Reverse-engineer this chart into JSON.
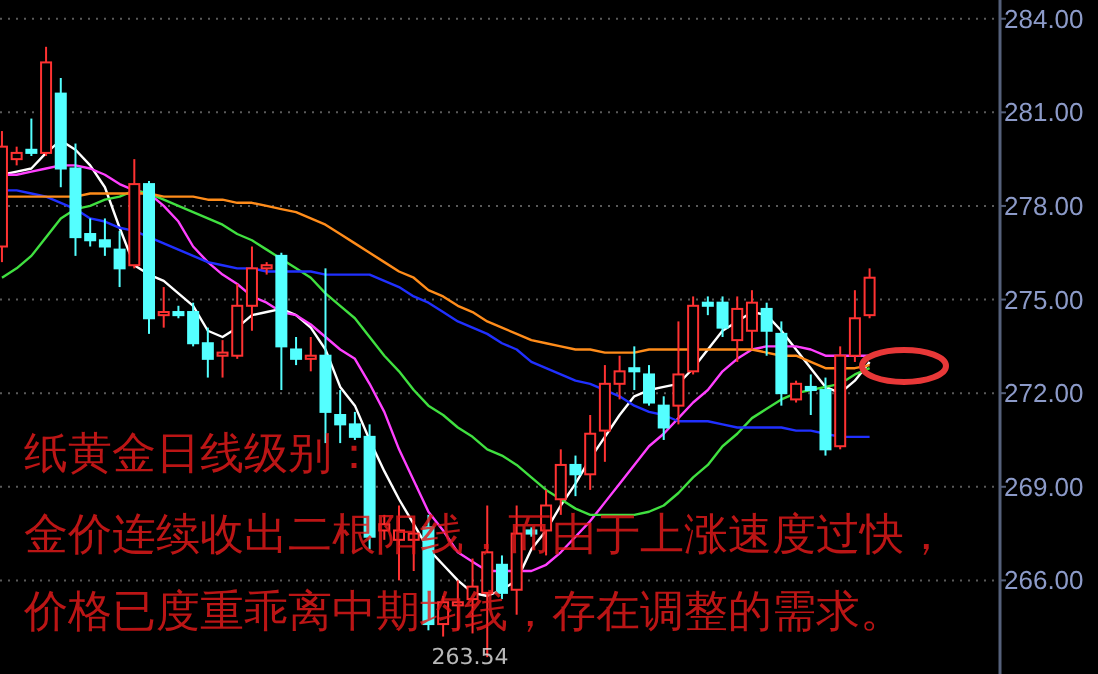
{
  "chart_data": {
    "type": "candlestick",
    "categories": [
      null,
      null,
      null,
      null,
      null,
      null,
      null,
      null,
      null,
      null,
      null,
      null,
      null,
      null,
      null,
      null,
      null,
      null,
      null,
      null,
      null,
      null,
      null,
      null,
      null,
      null,
      null,
      null,
      null,
      null,
      null,
      null,
      null,
      null,
      null,
      null,
      null,
      null,
      null,
      null,
      null,
      null,
      null,
      null,
      null,
      null,
      null,
      null,
      null,
      null,
      null,
      null,
      null,
      null,
      null,
      null,
      null,
      null,
      null,
      null
    ],
    "ohlc": [
      [
        276.7,
        280.4,
        276.2,
        279.9
      ],
      [
        279.5,
        279.9,
        279.3,
        279.7
      ],
      [
        279.8,
        280.8,
        279.6,
        279.7
      ],
      [
        279.7,
        283.1,
        279.6,
        282.6
      ],
      [
        281.6,
        282.1,
        278.6,
        279.2
      ],
      [
        279.2,
        280.0,
        276.4,
        277.0
      ],
      [
        277.1,
        277.6,
        276.7,
        276.9
      ],
      [
        276.9,
        277.6,
        276.4,
        276.7
      ],
      [
        276.6,
        277.2,
        275.4,
        276.0
      ],
      [
        276.1,
        279.5,
        276.0,
        278.7
      ],
      [
        278.7,
        278.8,
        273.9,
        274.4
      ],
      [
        274.5,
        275.4,
        274.1,
        274.6
      ],
      [
        274.6,
        274.8,
        274.4,
        274.5
      ],
      [
        274.6,
        274.9,
        273.5,
        273.6
      ],
      [
        273.6,
        274.1,
        272.5,
        273.1
      ],
      [
        273.2,
        273.7,
        272.5,
        273.3
      ],
      [
        273.2,
        275.5,
        273.1,
        274.8
      ],
      [
        274.8,
        276.7,
        274.0,
        276.0
      ],
      [
        276.0,
        276.2,
        275.8,
        276.1
      ],
      [
        276.4,
        276.5,
        272.1,
        273.5
      ],
      [
        273.4,
        273.8,
        272.9,
        273.1
      ],
      [
        273.1,
        273.8,
        272.7,
        273.2
      ],
      [
        273.2,
        276.0,
        270.4,
        271.4
      ],
      [
        271.3,
        272.1,
        270.4,
        271.0
      ],
      [
        271.0,
        271.4,
        270.5,
        270.6
      ],
      [
        270.6,
        271.0,
        267.0,
        267.4
      ],
      [
        267.6,
        268.1,
        267.3,
        267.8
      ],
      [
        267.3,
        268.4,
        266.0,
        267.6
      ],
      [
        267.3,
        267.9,
        266.3,
        267.5
      ],
      [
        267.7,
        268.1,
        264.4,
        264.6
      ],
      [
        264.6,
        265.5,
        264.2,
        265.3
      ],
      [
        265.2,
        266.0,
        264.4,
        265.3
      ],
      [
        265.4,
        266.7,
        264.3,
        265.8
      ],
      [
        265.6,
        268.4,
        263.54,
        266.9
      ],
      [
        266.5,
        266.8,
        265.4,
        265.6
      ],
      [
        265.7,
        268.4,
        264.9,
        267.5
      ],
      [
        267.6,
        267.7,
        267.4,
        267.5
      ],
      [
        267.6,
        268.9,
        266.8,
        268.4
      ],
      [
        268.6,
        270.2,
        268.1,
        269.7
      ],
      [
        269.7,
        270.0,
        268.7,
        269.4
      ],
      [
        269.4,
        271.3,
        268.9,
        270.7
      ],
      [
        270.8,
        272.9,
        269.8,
        272.3
      ],
      [
        272.3,
        273.2,
        271.8,
        272.7
      ],
      [
        272.8,
        273.5,
        272.1,
        272.7
      ],
      [
        272.6,
        272.9,
        271.6,
        271.7
      ],
      [
        271.6,
        271.9,
        270.5,
        270.9
      ],
      [
        271.6,
        274.3,
        271.0,
        272.6
      ],
      [
        272.7,
        275.1,
        272.6,
        274.8
      ],
      [
        274.9,
        275.1,
        274.5,
        274.8
      ],
      [
        274.9,
        275.1,
        273.8,
        274.1
      ],
      [
        273.7,
        275.1,
        273.0,
        274.7
      ],
      [
        274.0,
        275.3,
        273.4,
        274.9
      ],
      [
        274.7,
        274.9,
        273.2,
        274.0
      ],
      [
        273.9,
        274.3,
        271.6,
        272.0
      ],
      [
        271.8,
        272.4,
        271.7,
        272.3
      ],
      [
        272.2,
        272.6,
        271.3,
        272.1
      ],
      [
        272.1,
        272.5,
        270.0,
        270.2
      ],
      [
        270.3,
        273.5,
        270.2,
        273.2
      ],
      [
        273.2,
        275.3,
        273.0,
        274.4
      ],
      [
        274.5,
        276.0,
        274.4,
        275.7
      ]
    ],
    "colors": [
      "#ff3232",
      "#ff3232",
      "#54ffff",
      "#ff3232",
      "#54ffff",
      "#54ffff",
      "#54ffff",
      "#54ffff",
      "#54ffff",
      "#ff3232",
      "#54ffff",
      "#ff3232",
      "#54ffff",
      "#54ffff",
      "#54ffff",
      "#ff3232",
      "#ff3232",
      "#ff3232",
      "#ff3232",
      "#54ffff",
      "#54ffff",
      "#ff3232",
      "#54ffff",
      "#54ffff",
      "#54ffff",
      "#54ffff",
      "#ff3232",
      "#ff3232",
      "#ff3232",
      "#54ffff",
      "#ff3232",
      "#ff3232",
      "#ff3232",
      "#ff3232",
      "#54ffff",
      "#ff3232",
      "#54ffff",
      "#ff3232",
      "#ff3232",
      "#54ffff",
      "#ff3232",
      "#ff3232",
      "#ff3232",
      "#54ffff",
      "#54ffff",
      "#54ffff",
      "#ff3232",
      "#ff3232",
      "#54ffff",
      "#54ffff",
      "#ff3232",
      "#ff3232",
      "#54ffff",
      "#54ffff",
      "#ff3232",
      "#54ffff",
      "#54ffff",
      "#ff3232",
      "#ff3232",
      "#ff3232"
    ],
    "series": [
      {
        "type": "line",
        "color": "#ffffff",
        "values": [
          279.0,
          279.1,
          279.2,
          279.7,
          280.1,
          279.8,
          279.3,
          278.6,
          277.3,
          276.1,
          275.8,
          275.6,
          275.2,
          274.8,
          274.0,
          273.8,
          274.1,
          274.5,
          274.6,
          274.7,
          274.5,
          274.1,
          273.4,
          272.2,
          271.6,
          270.5,
          269.5,
          268.6,
          267.8,
          267.0,
          266.5,
          266.0,
          265.6,
          265.5,
          265.7,
          266.0,
          267.0,
          267.6,
          268.4,
          269.1,
          269.9,
          270.6,
          271.3,
          271.9,
          272.1,
          272.2,
          272.3,
          272.8,
          273.4,
          274.0,
          274.3,
          274.6,
          274.5,
          274.0,
          273.4,
          272.8,
          272.2,
          272.0,
          272.4,
          273.0
        ]
      },
      {
        "type": "line",
        "color": "#ff40ff",
        "values": [
          279.0,
          279.0,
          279.1,
          279.2,
          279.3,
          279.3,
          279.2,
          279.0,
          278.7,
          278.5,
          278.4,
          278.0,
          277.5,
          276.7,
          276.2,
          275.8,
          275.5,
          275.1,
          274.9,
          274.6,
          274.5,
          274.2,
          273.8,
          273.4,
          273.1,
          272.3,
          271.4,
          270.2,
          269.2,
          268.2,
          267.6,
          266.9,
          266.6,
          266.3,
          266.3,
          266.3,
          266.3,
          266.5,
          266.9,
          267.4,
          267.9,
          268.5,
          269.1,
          269.7,
          270.3,
          270.7,
          271.2,
          271.7,
          272.1,
          272.7,
          273.1,
          273.4,
          273.5,
          273.5,
          273.5,
          273.4,
          273.2,
          273.2,
          273.2,
          273.2
        ]
      },
      {
        "type": "line",
        "color": "#40e040",
        "values": [
          275.7,
          276.0,
          276.4,
          277.0,
          277.6,
          277.9,
          278.0,
          278.2,
          278.3,
          278.5,
          278.4,
          278.2,
          278.0,
          277.8,
          277.6,
          277.4,
          277.1,
          276.9,
          276.6,
          276.3,
          276.0,
          275.7,
          275.2,
          274.8,
          274.4,
          273.8,
          273.2,
          272.7,
          272.1,
          271.6,
          271.3,
          270.9,
          270.6,
          270.2,
          270.0,
          269.7,
          269.3,
          268.9,
          268.6,
          268.3,
          268.1,
          268.1,
          268.1,
          268.1,
          268.2,
          268.4,
          268.8,
          269.3,
          269.7,
          270.3,
          270.7,
          271.2,
          271.5,
          271.8,
          272.0,
          272.1,
          272.2,
          272.3,
          272.6,
          272.8
        ]
      },
      {
        "type": "line",
        "color": "#2030ff",
        "values": [
          278.5,
          278.5,
          278.4,
          278.3,
          278.1,
          277.9,
          277.6,
          277.5,
          277.3,
          277.2,
          277.0,
          276.8,
          276.6,
          276.4,
          276.2,
          276.1,
          276.0,
          276.0,
          275.9,
          275.9,
          275.9,
          275.9,
          275.8,
          275.8,
          275.8,
          275.8,
          275.6,
          275.4,
          275.1,
          274.9,
          274.6,
          274.3,
          274.1,
          273.9,
          273.6,
          273.4,
          273.0,
          272.8,
          272.6,
          272.4,
          272.3,
          272.1,
          271.9,
          271.6,
          271.4,
          271.3,
          271.1,
          271.1,
          271.1,
          271.0,
          270.9,
          270.9,
          270.9,
          270.9,
          270.8,
          270.8,
          270.7,
          270.6,
          270.6,
          270.6
        ]
      },
      {
        "type": "line",
        "color": "#ff8c1a",
        "values": [
          278.3,
          278.3,
          278.3,
          278.3,
          278.3,
          278.3,
          278.4,
          278.4,
          278.4,
          278.4,
          278.4,
          278.3,
          278.3,
          278.3,
          278.2,
          278.2,
          278.1,
          278.1,
          278.0,
          277.9,
          277.8,
          277.6,
          277.4,
          277.1,
          276.8,
          276.5,
          276.2,
          275.9,
          275.7,
          275.3,
          275.1,
          274.8,
          274.6,
          274.3,
          274.1,
          273.9,
          273.7,
          273.6,
          273.5,
          273.4,
          273.4,
          273.3,
          273.3,
          273.3,
          273.4,
          273.4,
          273.4,
          273.4,
          273.4,
          273.4,
          273.4,
          273.4,
          273.3,
          273.2,
          273.2,
          273.0,
          272.8,
          272.8,
          272.8,
          272.9
        ]
      }
    ],
    "ylim": [
      263.0,
      284.6
    ],
    "yticks": [
      {
        "value": 266,
        "label": "266.00"
      },
      {
        "value": 269,
        "label": "269.00"
      },
      {
        "value": 272,
        "label": "272.00"
      },
      {
        "value": 275,
        "label": "275.00"
      },
      {
        "value": 278,
        "label": "278.00"
      },
      {
        "value": 281,
        "label": "281.00"
      },
      {
        "value": 284,
        "label": "284.00"
      }
    ],
    "grid": "y",
    "tick_labels": "y",
    "annotations": [
      "纸黄金日线级别：",
      "金价连续收出二根阳线，而由于上涨速度过快，",
      "价格已度重乖离中期均线，存在调整的需求。",
      "263.54"
    ]
  }
}
